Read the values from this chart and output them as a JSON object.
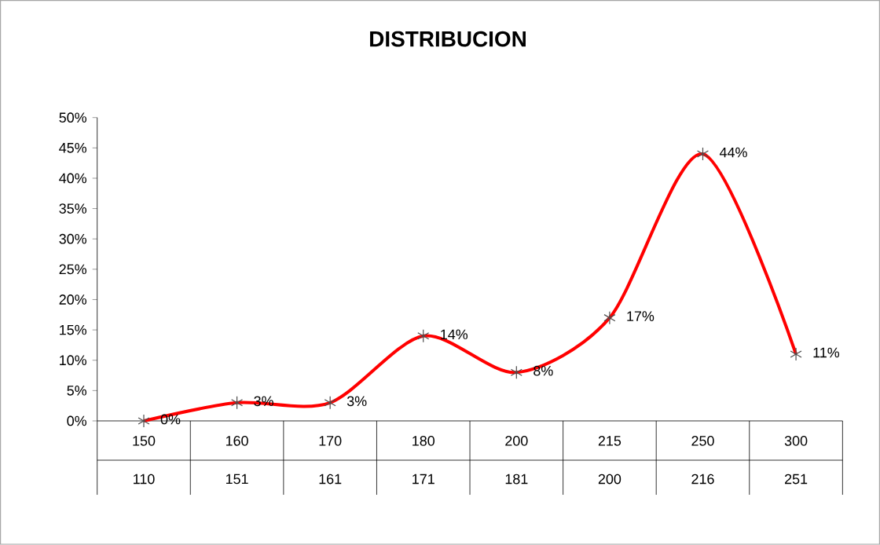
{
  "chart_data": {
    "type": "line",
    "title": "DISTRIBUCION",
    "categories": [
      "150",
      "160",
      "170",
      "180",
      "200",
      "215",
      "250",
      "300"
    ],
    "annotations": [
      "110",
      "151",
      "161",
      "171",
      "181",
      "200",
      "216",
      "251"
    ],
    "values": [
      0,
      3,
      3,
      14,
      8,
      17,
      44,
      11
    ],
    "value_labels": [
      "0%",
      "3%",
      "3%",
      "14%",
      "8%",
      "17%",
      "44%",
      "11%"
    ],
    "color": "#ff0000",
    "marker": "cross",
    "ylim": [
      0,
      50
    ],
    "yticks": [
      {
        "value": 0,
        "label": "0%"
      },
      {
        "value": 5,
        "label": "5%"
      },
      {
        "value": 10,
        "label": "10%"
      },
      {
        "value": 15,
        "label": "15%"
      },
      {
        "value": 20,
        "label": "20%"
      },
      {
        "value": 25,
        "label": "25%"
      },
      {
        "value": 30,
        "label": "30%"
      },
      {
        "value": 35,
        "label": "35%"
      },
      {
        "value": 40,
        "label": "40%"
      },
      {
        "value": 45,
        "label": "45%"
      },
      {
        "value": 50,
        "label": "50%"
      }
    ]
  }
}
